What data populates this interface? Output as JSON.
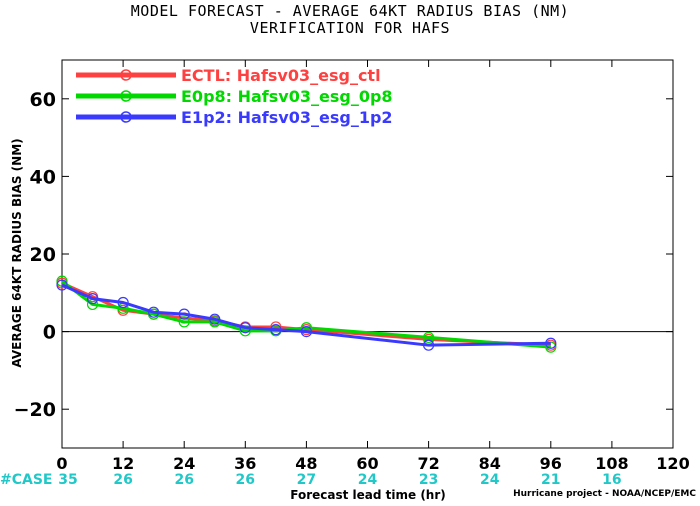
{
  "title_line1": "MODEL FORECAST - AVERAGE 64KT RADIUS BIAS (NM)",
  "title_line2": "VERIFICATION FOR HAFS",
  "footer": "Hurricane project - NOAA/NCEP/EMC",
  "case_label": "#CASE",
  "chart_data": {
    "type": "line",
    "xlabel": "Forecast lead time (hr)",
    "ylabel": "AVERAGE 64KT RADIUS BIAS (NM)",
    "xlim": [
      0,
      120
    ],
    "ylim": [
      -30,
      70
    ],
    "xticks": [
      0,
      12,
      24,
      36,
      48,
      60,
      72,
      84,
      96,
      108,
      120
    ],
    "yticks": [
      -20,
      0,
      20,
      40,
      60
    ],
    "grid": false,
    "legend_position": "top-left",
    "zero_line": true,
    "case_counts": [
      {
        "x": 0,
        "label": "35"
      },
      {
        "x": 12,
        "label": "26"
      },
      {
        "x": 24,
        "label": "26"
      },
      {
        "x": 36,
        "label": "26"
      },
      {
        "x": 48,
        "label": "27"
      },
      {
        "x": 60,
        "label": "24"
      },
      {
        "x": 72,
        "label": "23"
      },
      {
        "x": 84,
        "label": "24"
      },
      {
        "x": 96,
        "label": "21"
      },
      {
        "x": 108,
        "label": "16"
      }
    ],
    "series": [
      {
        "name": "ECTL: Hafsv03_esg_ctl",
        "color": "#ff4040",
        "points": [
          [
            0,
            12.5
          ],
          [
            6,
            9
          ],
          [
            12,
            5.5
          ],
          [
            18,
            4.5
          ],
          [
            24,
            3.5
          ],
          [
            30,
            2.8
          ],
          [
            36,
            1.2
          ],
          [
            42,
            1.2
          ],
          [
            48,
            0.5
          ],
          [
            72,
            -2
          ],
          [
            96,
            -3.5
          ]
        ]
      },
      {
        "name": "E0p8: Hafsv03_esg_0p8",
        "color": "#00d800",
        "points": [
          [
            0,
            13
          ],
          [
            6,
            7
          ],
          [
            12,
            6
          ],
          [
            18,
            4.5
          ],
          [
            24,
            2.5
          ],
          [
            30,
            2.5
          ],
          [
            36,
            0.2
          ],
          [
            42,
            0.2
          ],
          [
            48,
            1
          ],
          [
            72,
            -1.5
          ],
          [
            96,
            -4
          ]
        ]
      },
      {
        "name": "E1p2: Hafsv03_esg_1p2",
        "color": "#3a3aff",
        "points": [
          [
            0,
            12
          ],
          [
            6,
            8.5
          ],
          [
            12,
            7.5
          ],
          [
            18,
            5
          ],
          [
            24,
            4.5
          ],
          [
            30,
            3.2
          ],
          [
            36,
            1
          ],
          [
            42,
            0.5
          ],
          [
            48,
            0
          ],
          [
            72,
            -3.5
          ],
          [
            96,
            -3
          ]
        ]
      }
    ]
  }
}
